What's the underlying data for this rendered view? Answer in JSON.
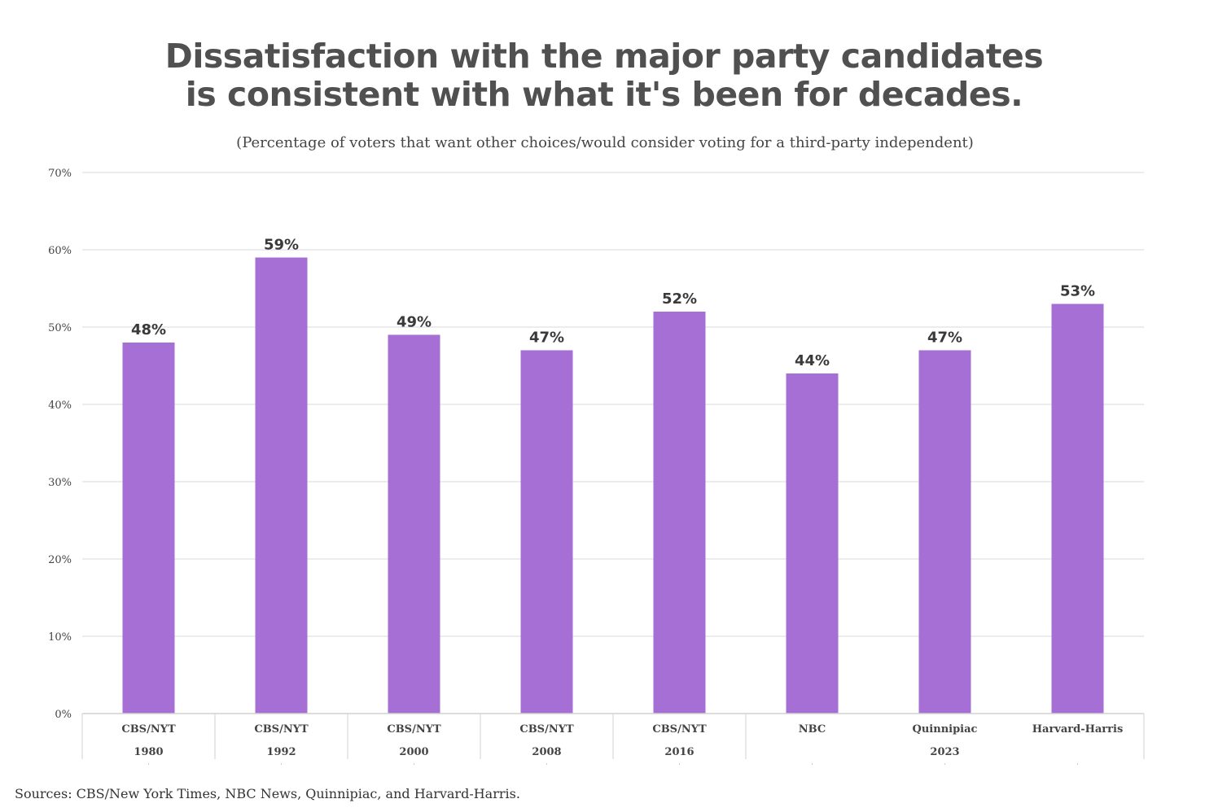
{
  "chart_data": {
    "type": "bar",
    "title_line1": "Dissatisfaction with the major party candidates",
    "title_line2": "is consistent with what it's been for decades.",
    "subtitle": "(Percentage of voters that want other choices/would consider voting for a third-party independent)",
    "categories": [
      {
        "pollster": "CBS/NYT",
        "year": "1980"
      },
      {
        "pollster": "CBS/NYT",
        "year": "1992"
      },
      {
        "pollster": "CBS/NYT",
        "year": "2000"
      },
      {
        "pollster": "CBS/NYT",
        "year": "2008"
      },
      {
        "pollster": "CBS/NYT",
        "year": "2016"
      },
      {
        "pollster": "NBC",
        "year": "2023"
      },
      {
        "pollster": "Quinnipiac",
        "year": "2023"
      },
      {
        "pollster": "Harvard-Harris",
        "year": "2023"
      }
    ],
    "year_groups": [
      {
        "label": "1980",
        "count": 1
      },
      {
        "label": "1992",
        "count": 1
      },
      {
        "label": "2000",
        "count": 1
      },
      {
        "label": "2008",
        "count": 1
      },
      {
        "label": "2016",
        "count": 1
      },
      {
        "label": "2023",
        "count": 3
      }
    ],
    "values": [
      48,
      59,
      49,
      47,
      52,
      44,
      47,
      53
    ],
    "data_labels": [
      "48%",
      "59%",
      "49%",
      "47%",
      "52%",
      "44%",
      "47%",
      "53%"
    ],
    "yticks": [
      "0%",
      "10%",
      "20%",
      "30%",
      "40%",
      "50%",
      "60%",
      "70%"
    ],
    "ylim": [
      0,
      70
    ],
    "xlabel": "",
    "ylabel": "",
    "grid": true,
    "legend": "none",
    "bar_color": "#a66fd5",
    "source": "Sources: CBS/New York Times, NBC News, Quinnipiac, and Harvard-Harris."
  }
}
